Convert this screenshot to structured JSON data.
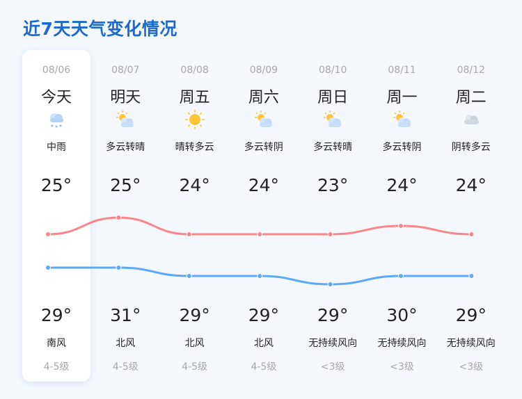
{
  "title": "近7天天气变化情况",
  "colors": {
    "high_line": "#f9868a",
    "low_line": "#5aaaf5",
    "title": "#1c6ad0"
  },
  "days": [
    {
      "date": "08/06",
      "day": "今天",
      "icon": "rain-cloud-icon",
      "cond": "中雨",
      "low": "25°",
      "high": "29°",
      "wind": "南风",
      "level": "4-5级",
      "low_v": 25,
      "high_v": 29
    },
    {
      "date": "08/07",
      "day": "明天",
      "icon": "partly-cloudy-icon",
      "cond": "多云转晴",
      "low": "25°",
      "high": "31°",
      "wind": "北风",
      "level": "4-5级",
      "low_v": 25,
      "high_v": 31
    },
    {
      "date": "08/08",
      "day": "周五",
      "icon": "sun-icon",
      "cond": "晴转多云",
      "low": "24°",
      "high": "29°",
      "wind": "北风",
      "level": "4-5级",
      "low_v": 24,
      "high_v": 29
    },
    {
      "date": "08/09",
      "day": "周六",
      "icon": "partly-cloudy-icon",
      "cond": "多云转阴",
      "low": "24°",
      "high": "29°",
      "wind": "北风",
      "level": "4-5级",
      "low_v": 24,
      "high_v": 29
    },
    {
      "date": "08/10",
      "day": "周日",
      "icon": "partly-cloudy-icon",
      "cond": "多云转晴",
      "low": "23°",
      "high": "29°",
      "wind": "无持续风向",
      "level": "<3级",
      "low_v": 23,
      "high_v": 29
    },
    {
      "date": "08/11",
      "day": "周一",
      "icon": "partly-cloudy-icon",
      "cond": "多云转阴",
      "low": "24°",
      "high": "30°",
      "wind": "无持续风向",
      "level": "<3级",
      "low_v": 24,
      "high_v": 30
    },
    {
      "date": "08/12",
      "day": "周二",
      "icon": "cloudy-icon",
      "cond": "阴转多云",
      "low": "24°",
      "high": "29°",
      "wind": "无持续风向",
      "level": "<3级",
      "low_v": 24,
      "high_v": 29
    }
  ]
}
